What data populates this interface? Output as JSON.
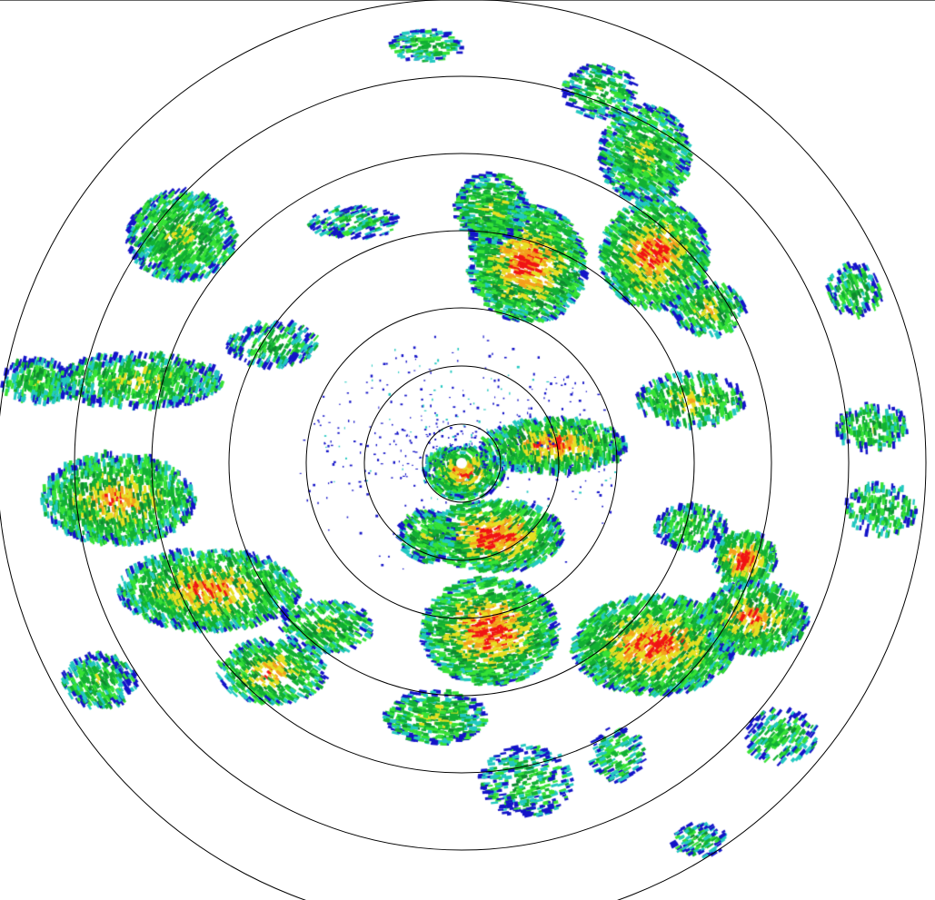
{
  "radar": {
    "type": "reflectivity-ppi",
    "range_ring_count": 7,
    "palette": {
      "very_weak": "#1414c8",
      "weak": "#22c8c0",
      "light": "#36e236",
      "moderate": "#12b034",
      "moderate_dark": "#0e8a30",
      "heavy": "#e6e022",
      "very_heavy": "#f4a01c",
      "intense": "#f01414"
    },
    "ring_color": "#000000",
    "background": "#ffffff"
  }
}
